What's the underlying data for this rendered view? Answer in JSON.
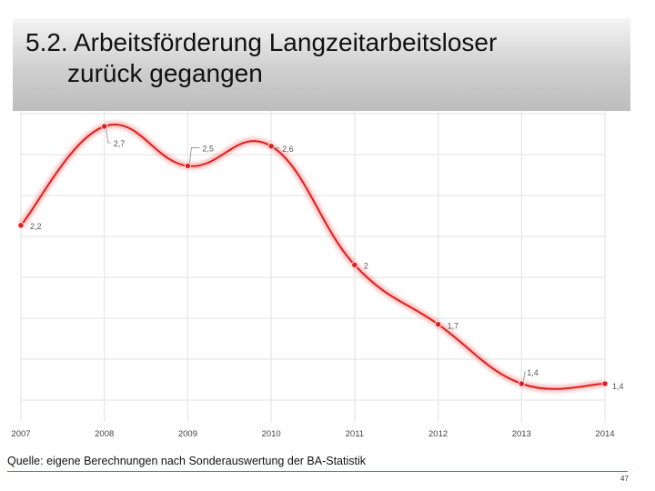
{
  "header": {
    "title_line1": "5.2. Arbeitsförderung Langzeitarbeitsloser",
    "title_line2": "zurück gegangen"
  },
  "footer": {
    "source": "Quelle: eigene Berechnungen nach Sonderauswertung der BA-Statistik",
    "page_number": "47"
  },
  "colors": {
    "line": "#e02020",
    "grid": "#e2e2e2",
    "label": "#555555"
  },
  "chart_data": {
    "type": "line",
    "x": [
      "2007",
      "2008",
      "2009",
      "2010",
      "2011",
      "2012",
      "2013",
      "2014"
    ],
    "series": [
      {
        "values": [
          2.2,
          2.7,
          2.5,
          2.6,
          2,
          1.7,
          1.4,
          1.4
        ],
        "labels": [
          "2,2",
          "2,7",
          "2,5",
          "2,6",
          "2",
          "1,7",
          "1,4",
          "1,4"
        ]
      }
    ],
    "title": "",
    "xlabel": "",
    "ylabel": "",
    "ylim": [
      1.4,
      2.7
    ],
    "grid": true,
    "legend": "none"
  }
}
